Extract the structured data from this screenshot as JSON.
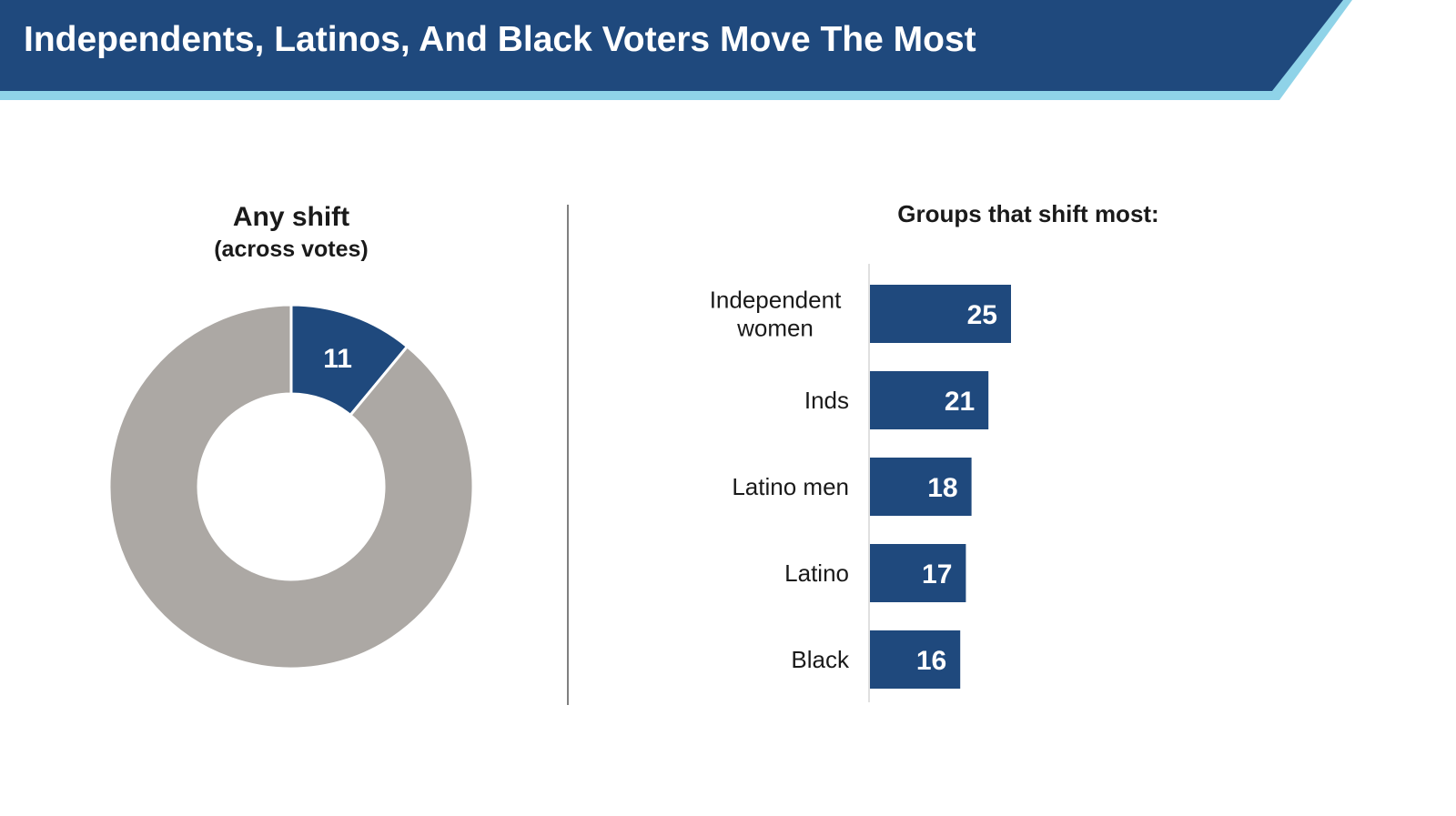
{
  "header": {
    "title": "Independents, Latinos, And Black Voters Move The Most",
    "bg_color": "#1f497d",
    "accent_color": "#8fd3e8"
  },
  "chart_data": [
    {
      "type": "pie",
      "title": "Any shift",
      "subtitle": "(across votes)",
      "donut": true,
      "slices": [
        {
          "label": "",
          "value": 11,
          "color": "#1f497d",
          "show_label": true
        },
        {
          "label": "",
          "value": 89,
          "color": "#aca8a4",
          "show_label": false
        }
      ]
    },
    {
      "type": "bar",
      "orientation": "horizontal",
      "title": "Groups that shift most:",
      "categories": [
        "Independent women",
        "Inds",
        "Latino men",
        "Latino",
        "Black"
      ],
      "category_lines": [
        [
          "Independent",
          "women"
        ],
        [
          "Inds"
        ],
        [
          "Latino men"
        ],
        [
          "Latino"
        ],
        [
          "Black"
        ]
      ],
      "values": [
        25,
        21,
        18,
        17,
        16
      ],
      "xlim": [
        0,
        100
      ],
      "bar_color": "#1f497d",
      "label_color": "#ffffff",
      "grid": false
    }
  ]
}
